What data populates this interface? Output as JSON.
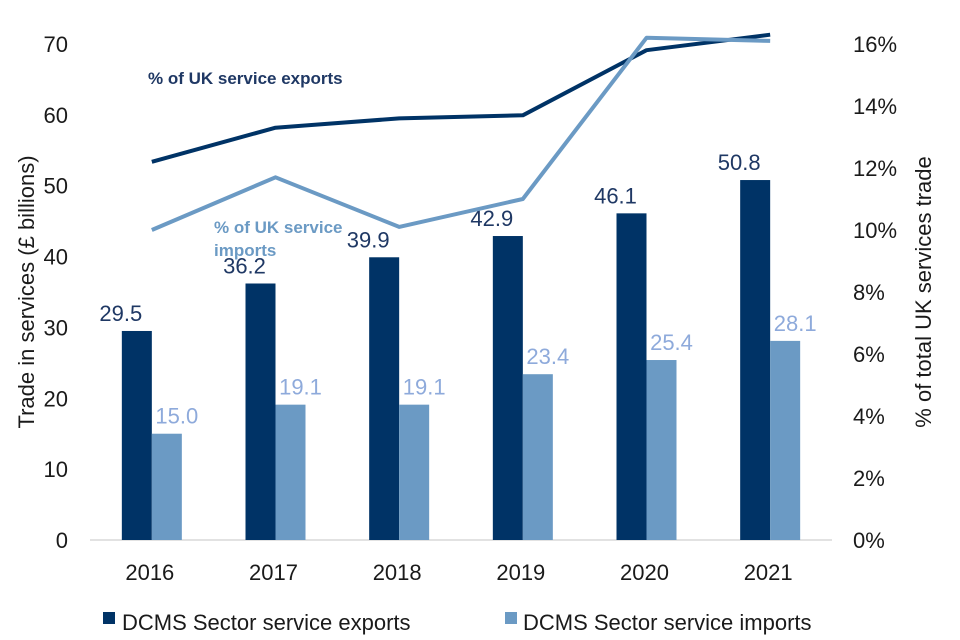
{
  "chart_data": {
    "type": "bar",
    "title": "",
    "categories": [
      "2016",
      "2017",
      "2018",
      "2019",
      "2020",
      "2021"
    ],
    "series": [
      {
        "name": "DCMS Sector service exports",
        "type": "bar",
        "axis": "left",
        "color": "#003366",
        "label_color": "#1f3864",
        "values": [
          29.5,
          36.2,
          39.9,
          42.9,
          46.1,
          50.8
        ],
        "labels": [
          "29.5",
          "36.2",
          "39.9",
          "42.9",
          "46.1",
          "50.8"
        ]
      },
      {
        "name": "DCMS Sector service imports",
        "type": "bar",
        "axis": "left",
        "color": "#6b9ac4",
        "label_color": "#8eaadb",
        "values": [
          15.0,
          19.1,
          19.1,
          23.4,
          25.4,
          28.1
        ],
        "labels": [
          "15.0",
          "19.1",
          "19.1",
          "23.4",
          "25.4",
          "28.1"
        ]
      },
      {
        "name": "% of UK service exports",
        "type": "line",
        "axis": "right",
        "color": "#003366",
        "values": [
          12.2,
          13.3,
          13.6,
          13.7,
          15.8,
          16.3
        ]
      },
      {
        "name": "% of UK service imports",
        "type": "line",
        "axis": "right",
        "color": "#6b9ac4",
        "values": [
          10.0,
          11.7,
          10.1,
          11.0,
          16.2,
          16.1
        ]
      }
    ],
    "ylabel": "Trade in services (£ billions)",
    "ylim": [
      0,
      70
    ],
    "yticks": [
      "0",
      "10",
      "20",
      "30",
      "40",
      "50",
      "60",
      "70"
    ],
    "y2label": "% of total UK services trade",
    "y2lim": [
      0,
      16
    ],
    "y2ticks": [
      "0%",
      "2%",
      "4%",
      "6%",
      "8%",
      "10%",
      "12%",
      "14%",
      "16%"
    ],
    "xlabel": "",
    "grid": false,
    "legend": {
      "placement": "bottom",
      "entries": [
        "DCMS Sector service exports",
        "DCMS Sector service imports"
      ]
    },
    "annotations": {
      "exports_line": "% of UK service exports",
      "imports_line_1": "% of UK service",
      "imports_line_2": "imports"
    }
  }
}
